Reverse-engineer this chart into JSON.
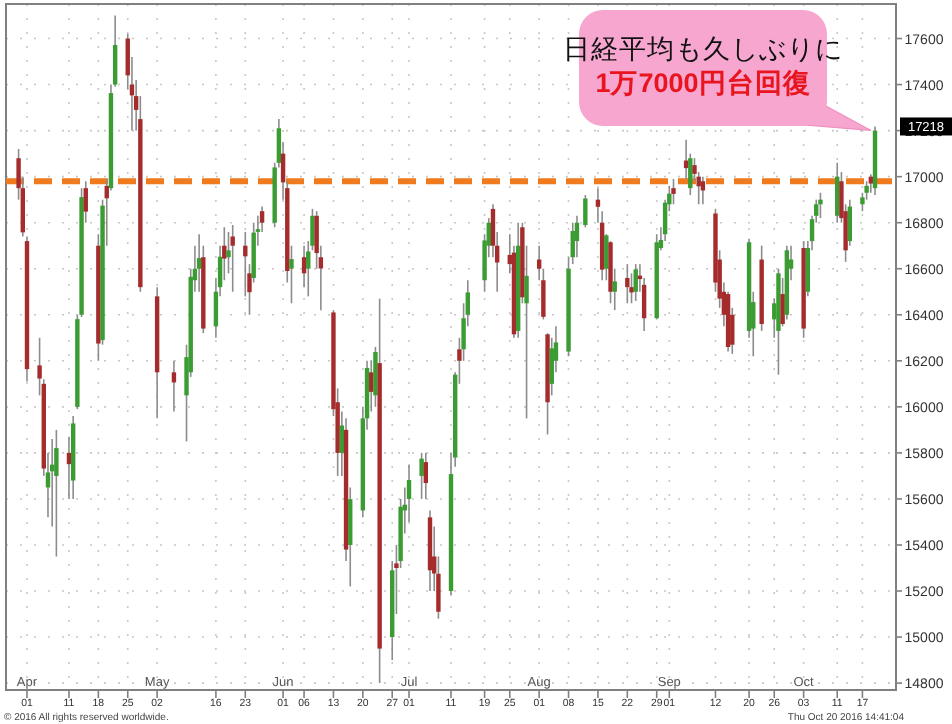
{
  "chart_data": {
    "type": "candlestick",
    "x": [
      "2016-03-30",
      "2016-03-31",
      "2016-04-01",
      "2016-04-04",
      "2016-04-05",
      "2016-04-06",
      "2016-04-07",
      "2016-04-08",
      "2016-04-11",
      "2016-04-12",
      "2016-04-13",
      "2016-04-14",
      "2016-04-15",
      "2016-04-18",
      "2016-04-19",
      "2016-04-20",
      "2016-04-21",
      "2016-04-22",
      "2016-04-25",
      "2016-04-26",
      "2016-04-27",
      "2016-04-28",
      "2016-05-02",
      "2016-05-06",
      "2016-05-09",
      "2016-05-10",
      "2016-05-11",
      "2016-05-12",
      "2016-05-13",
      "2016-05-16",
      "2016-05-17",
      "2016-05-18",
      "2016-05-19",
      "2016-05-20",
      "2016-05-23",
      "2016-05-24",
      "2016-05-25",
      "2016-05-26",
      "2016-05-27",
      "2016-05-30",
      "2016-05-31",
      "2016-06-01",
      "2016-06-02",
      "2016-06-03",
      "2016-06-06",
      "2016-06-07",
      "2016-06-08",
      "2016-06-09",
      "2016-06-10",
      "2016-06-13",
      "2016-06-14",
      "2016-06-15",
      "2016-06-16",
      "2016-06-17",
      "2016-06-20",
      "2016-06-21",
      "2016-06-22",
      "2016-06-23",
      "2016-06-24",
      "2016-06-27",
      "2016-06-28",
      "2016-06-29",
      "2016-06-30",
      "2016-07-01",
      "2016-07-04",
      "2016-07-05",
      "2016-07-06",
      "2016-07-07",
      "2016-07-08",
      "2016-07-11",
      "2016-07-12",
      "2016-07-13",
      "2016-07-14",
      "2016-07-15",
      "2016-07-19",
      "2016-07-20",
      "2016-07-21",
      "2016-07-22",
      "2016-07-25",
      "2016-07-26",
      "2016-07-27",
      "2016-07-28",
      "2016-07-29",
      "2016-08-01",
      "2016-08-02",
      "2016-08-03",
      "2016-08-04",
      "2016-08-05",
      "2016-08-08",
      "2016-08-09",
      "2016-08-10",
      "2016-08-12",
      "2016-08-15",
      "2016-08-16",
      "2016-08-17",
      "2016-08-18",
      "2016-08-19",
      "2016-08-22",
      "2016-08-23",
      "2016-08-24",
      "2016-08-25",
      "2016-08-26",
      "2016-08-29",
      "2016-08-30",
      "2016-08-31",
      "2016-09-01",
      "2016-09-02",
      "2016-09-05",
      "2016-09-06",
      "2016-09-07",
      "2016-09-08",
      "2016-09-09",
      "2016-09-12",
      "2016-09-13",
      "2016-09-14",
      "2016-09-15",
      "2016-09-16",
      "2016-09-20",
      "2016-09-21",
      "2016-09-23",
      "2016-09-26",
      "2016-09-27",
      "2016-09-28",
      "2016-09-29",
      "2016-09-30",
      "2016-10-03",
      "2016-10-04",
      "2016-10-05",
      "2016-10-06",
      "2016-10-07",
      "2016-10-11",
      "2016-10-12",
      "2016-10-13",
      "2016-10-14",
      "2016-10-17",
      "2016-10-18",
      "2016-10-19",
      "2016-10-20"
    ],
    "ohlc": [
      [
        17080,
        17120,
        16900,
        16950
      ],
      [
        16950,
        17000,
        16740,
        16758
      ],
      [
        16720,
        16740,
        16110,
        16164
      ],
      [
        16180,
        16300,
        16050,
        16123
      ],
      [
        16100,
        16120,
        15700,
        15732
      ],
      [
        15650,
        15800,
        15520,
        15715
      ],
      [
        15720,
        15860,
        15480,
        15749
      ],
      [
        15700,
        15900,
        15350,
        15821
      ],
      [
        15800,
        15870,
        15600,
        15751
      ],
      [
        15680,
        15960,
        15600,
        15928
      ],
      [
        16000,
        16400,
        15990,
        16381
      ],
      [
        16400,
        16950,
        16390,
        16911
      ],
      [
        16950,
        16980,
        16800,
        16848
      ],
      [
        16700,
        16750,
        16200,
        16275
      ],
      [
        16290,
        16900,
        16270,
        16874
      ],
      [
        16960,
        16990,
        16700,
        16906
      ],
      [
        16950,
        17400,
        16940,
        17363
      ],
      [
        17400,
        17700,
        17390,
        17572
      ],
      [
        17600,
        17620,
        17380,
        17440
      ],
      [
        17400,
        17520,
        17200,
        17353
      ],
      [
        17350,
        17420,
        17200,
        17290
      ],
      [
        17250,
        17350,
        16500,
        16520
      ],
      [
        16480,
        16520,
        15950,
        16150
      ],
      [
        16150,
        16200,
        15980,
        16106
      ],
      [
        16050,
        16270,
        15850,
        16216
      ],
      [
        16150,
        16600,
        16130,
        16565
      ],
      [
        16550,
        16700,
        16500,
        16600
      ],
      [
        16600,
        16750,
        16500,
        16646
      ],
      [
        16650,
        16700,
        16320,
        16340
      ],
      [
        16350,
        16560,
        16300,
        16500
      ],
      [
        16520,
        16700,
        16480,
        16652
      ],
      [
        16700,
        16780,
        16550,
        16644
      ],
      [
        16650,
        16760,
        16580,
        16680
      ],
      [
        16740,
        16790,
        16500,
        16700
      ],
      [
        16700,
        16760,
        16480,
        16654
      ],
      [
        16580,
        16620,
        16400,
        16498
      ],
      [
        16560,
        16800,
        16540,
        16757
      ],
      [
        16760,
        16830,
        16700,
        16772
      ],
      [
        16850,
        16870,
        16760,
        16800
      ],
      [
        16800,
        17060,
        16780,
        17040
      ],
      [
        17060,
        17250,
        17040,
        17210
      ],
      [
        17100,
        17150,
        16900,
        16975
      ],
      [
        16950,
        16980,
        16540,
        16590
      ],
      [
        16600,
        16700,
        16450,
        16642
      ],
      [
        16650,
        16700,
        16520,
        16580
      ],
      [
        16600,
        16720,
        16480,
        16675
      ],
      [
        16700,
        16860,
        16680,
        16830
      ],
      [
        16830,
        16850,
        16600,
        16668
      ],
      [
        16650,
        16700,
        16420,
        16601
      ],
      [
        16410,
        16420,
        15960,
        15990
      ],
      [
        16020,
        16080,
        15700,
        15800
      ],
      [
        15800,
        15980,
        15700,
        15919
      ],
      [
        15900,
        15950,
        15330,
        15380
      ],
      [
        15400,
        15650,
        15220,
        15599
      ],
      [
        15550,
        16000,
        15520,
        15950
      ],
      [
        15950,
        16200,
        15900,
        16169
      ],
      [
        16150,
        16200,
        15980,
        16065
      ],
      [
        16050,
        16260,
        16000,
        16238
      ],
      [
        16190,
        16470,
        14800,
        14950
      ],
      [
        15000,
        15330,
        14900,
        15290
      ],
      [
        15320,
        15400,
        15100,
        15300
      ],
      [
        15330,
        15600,
        15300,
        15566
      ],
      [
        15550,
        15650,
        15450,
        15575
      ],
      [
        15600,
        15750,
        15500,
        15682
      ],
      [
        15700,
        15800,
        15600,
        15775
      ],
      [
        15760,
        15800,
        15600,
        15669
      ],
      [
        15520,
        15550,
        15200,
        15290
      ],
      [
        15350,
        15480,
        15200,
        15276
      ],
      [
        15275,
        15350,
        15080,
        15110
      ],
      [
        15200,
        15800,
        15180,
        15708
      ],
      [
        15780,
        16150,
        15740,
        16140
      ],
      [
        16250,
        16300,
        16100,
        16200
      ],
      [
        16250,
        16450,
        16200,
        16385
      ],
      [
        16400,
        16550,
        16350,
        16497
      ],
      [
        16550,
        16750,
        16500,
        16723
      ],
      [
        16700,
        16820,
        16650,
        16800
      ],
      [
        16860,
        16880,
        16650,
        16700
      ],
      [
        16700,
        16760,
        16500,
        16627
      ],
      [
        16660,
        16750,
        16580,
        16620
      ],
      [
        16670,
        16700,
        16300,
        16315
      ],
      [
        16330,
        16800,
        16300,
        16700
      ],
      [
        16780,
        16800,
        16450,
        16476
      ],
      [
        16450,
        16700,
        15950,
        16569
      ],
      [
        16640,
        16700,
        16550,
        16600
      ],
      [
        16550,
        16600,
        16380,
        16391
      ],
      [
        16315,
        16320,
        15880,
        16020
      ],
      [
        16100,
        16300,
        16050,
        16254
      ],
      [
        16200,
        16350,
        16150,
        16280
      ],
      [
        16240,
        16650,
        16220,
        16600
      ],
      [
        16650,
        16800,
        16620,
        16764
      ],
      [
        16720,
        16830,
        16650,
        16800
      ],
      [
        16790,
        16920,
        16780,
        16905
      ],
      [
        16900,
        16950,
        16800,
        16869
      ],
      [
        16800,
        16850,
        16550,
        16596
      ],
      [
        16600,
        16750,
        16550,
        16745
      ],
      [
        16715,
        16720,
        16450,
        16500
      ],
      [
        16500,
        16600,
        16420,
        16545
      ],
      [
        16560,
        16620,
        16450,
        16520
      ],
      [
        16520,
        16580,
        16450,
        16497
      ],
      [
        16500,
        16620,
        16460,
        16597
      ],
      [
        16570,
        16620,
        16500,
        16555
      ],
      [
        16530,
        16560,
        16330,
        16385
      ],
      [
        16385,
        16750,
        16380,
        16715
      ],
      [
        16690,
        16780,
        16680,
        16725
      ],
      [
        16750,
        16900,
        16720,
        16887
      ],
      [
        16880,
        16960,
        16850,
        16926
      ],
      [
        16950,
        16990,
        16880,
        16925
      ],
      [
        17070,
        17160,
        16990,
        17037
      ],
      [
        16950,
        17100,
        16920,
        17080
      ],
      [
        17050,
        17080,
        16980,
        17012
      ],
      [
        17000,
        17020,
        16880,
        16958
      ],
      [
        16980,
        17000,
        16880,
        16940
      ],
      [
        16840,
        16860,
        16500,
        16540
      ],
      [
        16640,
        16680,
        16430,
        16470
      ],
      [
        16500,
        16540,
        16350,
        16400
      ],
      [
        16490,
        16500,
        16240,
        16260
      ],
      [
        16400,
        16430,
        16230,
        16270
      ],
      [
        16330,
        16730,
        16300,
        16715
      ],
      [
        16340,
        16500,
        16220,
        16455
      ],
      [
        16640,
        16700,
        16330,
        16360
      ],
      [
        16380,
        16470,
        16300,
        16450
      ],
      [
        16330,
        16600,
        16140,
        16580
      ],
      [
        16490,
        16560,
        16350,
        16360
      ],
      [
        16400,
        16700,
        16380,
        16680
      ],
      [
        16600,
        16700,
        16550,
        16640
      ],
      [
        16690,
        16720,
        16300,
        16340
      ],
      [
        16500,
        16720,
        16480,
        16690
      ],
      [
        16720,
        16830,
        16680,
        16815
      ],
      [
        16830,
        16900,
        16800,
        16880
      ],
      [
        16880,
        16930,
        16820,
        16900
      ],
      [
        16830,
        17060,
        16800,
        17000
      ],
      [
        16980,
        17020,
        16800,
        16820
      ],
      [
        16850,
        16880,
        16630,
        16680
      ],
      [
        16720,
        16900,
        16700,
        16870
      ],
      [
        16880,
        16930,
        16850,
        16910
      ],
      [
        16930,
        16980,
        16900,
        16960
      ],
      [
        17000,
        17010,
        16930,
        16970
      ],
      [
        16950,
        17218,
        16920,
        17200
      ]
    ],
    "colors": [
      "#a52c2c",
      "#a52c2c",
      "#a52c2c",
      "#a52c2c",
      "#a52c2c",
      "#3a9c32",
      "#3a9c32",
      "#3a9c32",
      "#a52c2c",
      "#3a9c32",
      "#3a9c32",
      "#3a9c32",
      "#a52c2c",
      "#a52c2c",
      "#3a9c32",
      "#a52c2c",
      "#3a9c32",
      "#3a9c32",
      "#a52c2c",
      "#a52c2c",
      "#a52c2c",
      "#a52c2c",
      "#a52c2c",
      "#a52c2c",
      "#3a9c32",
      "#3a9c32",
      "#3a9c32",
      "#3a9c32",
      "#a52c2c",
      "#3a9c32",
      "#3a9c32",
      "#a52c2c",
      "#3a9c32",
      "#a52c2c",
      "#a52c2c",
      "#a52c2c",
      "#3a9c32",
      "#3a9c32",
      "#a52c2c",
      "#3a9c32",
      "#3a9c32",
      "#a52c2c",
      "#a52c2c",
      "#3a9c32",
      "#a52c2c",
      "#3a9c32",
      "#3a9c32",
      "#a52c2c",
      "#a52c2c",
      "#a52c2c",
      "#a52c2c",
      "#3a9c32",
      "#a52c2c",
      "#3a9c32",
      "#3a9c32",
      "#3a9c32",
      "#a52c2c",
      "#3a9c32",
      "#a52c2c",
      "#3a9c32",
      "#a52c2c",
      "#3a9c32",
      "#3a9c32",
      "#3a9c32",
      "#3a9c32",
      "#a52c2c",
      "#a52c2c",
      "#a52c2c",
      "#a52c2c",
      "#3a9c32",
      "#3a9c32",
      "#a52c2c",
      "#3a9c32",
      "#3a9c32",
      "#3a9c32",
      "#3a9c32",
      "#a52c2c",
      "#a52c2c",
      "#a52c2c",
      "#a52c2c",
      "#3a9c32",
      "#a52c2c",
      "#3a9c32",
      "#a52c2c",
      "#a52c2c",
      "#a52c2c",
      "#3a9c32",
      "#3a9c32",
      "#3a9c32",
      "#3a9c32",
      "#3a9c32",
      "#3a9c32",
      "#a52c2c",
      "#a52c2c",
      "#3a9c32",
      "#a52c2c",
      "#3a9c32",
      "#a52c2c",
      "#a52c2c",
      "#3a9c32",
      "#a52c2c",
      "#a52c2c",
      "#3a9c32",
      "#3a9c32",
      "#3a9c32",
      "#3a9c32",
      "#a52c2c",
      "#a52c2c",
      "#3a9c32",
      "#a52c2c",
      "#a52c2c",
      "#a52c2c",
      "#a52c2c",
      "#a52c2c",
      "#a52c2c",
      "#a52c2c",
      "#a52c2c",
      "#3a9c32",
      "#3a9c32",
      "#a52c2c",
      "#3a9c32",
      "#3a9c32",
      "#a52c2c",
      "#3a9c32",
      "#3a9c32",
      "#a52c2c",
      "#3a9c32",
      "#3a9c32",
      "#3a9c32",
      "#3a9c32",
      "#3a9c32",
      "#a52c2c",
      "#a52c2c",
      "#3a9c32",
      "#3a9c32",
      "#3a9c32",
      "#a52c2c",
      "#3a9c32"
    ],
    "xlim": [
      "2016-03-27",
      "2016-10-25"
    ],
    "xticks": [
      {
        "value": "2016-04-01",
        "label": "01"
      },
      {
        "value": "2016-04-11",
        "label": "11"
      },
      {
        "value": "2016-04-18",
        "label": "18"
      },
      {
        "value": "2016-04-25",
        "label": "25"
      },
      {
        "value": "2016-05-02",
        "label": "02"
      },
      {
        "value": "2016-05-16",
        "label": "16"
      },
      {
        "value": "2016-05-23",
        "label": "23"
      },
      {
        "value": "2016-06-01",
        "label": "01"
      },
      {
        "value": "2016-06-06",
        "label": "06"
      },
      {
        "value": "2016-06-13",
        "label": "13"
      },
      {
        "value": "2016-06-20",
        "label": "20"
      },
      {
        "value": "2016-06-27",
        "label": "27"
      },
      {
        "value": "2016-07-01",
        "label": "01"
      },
      {
        "value": "2016-07-11",
        "label": "11"
      },
      {
        "value": "2016-07-19",
        "label": "19"
      },
      {
        "value": "2016-07-25",
        "label": "25"
      },
      {
        "value": "2016-08-01",
        "label": "01"
      },
      {
        "value": "2016-08-08",
        "label": "08"
      },
      {
        "value": "2016-08-15",
        "label": "15"
      },
      {
        "value": "2016-08-22",
        "label": "22"
      },
      {
        "value": "2016-08-29",
        "label": "29"
      },
      {
        "value": "2016-09-01",
        "label": "01"
      },
      {
        "value": "2016-09-12",
        "label": "12"
      },
      {
        "value": "2016-09-20",
        "label": "20"
      },
      {
        "value": "2016-09-26",
        "label": "26"
      },
      {
        "value": "2016-10-03",
        "label": "03"
      },
      {
        "value": "2016-10-11",
        "label": "11"
      },
      {
        "value": "2016-10-17",
        "label": "17"
      }
    ],
    "x2lim": [
      "2016-03-27",
      "2016-10-25"
    ],
    "x2ticks": [
      {
        "value": "2016-04-01",
        "label": "Apr"
      },
      {
        "value": "2016-05-02",
        "label": "May"
      },
      {
        "value": "2016-06-01",
        "label": "Jun"
      },
      {
        "value": "2016-07-01",
        "label": "Jul"
      },
      {
        "value": "2016-08-01",
        "label": "Aug"
      },
      {
        "value": "2016-09-01",
        "label": "Sep"
      },
      {
        "value": "2016-10-03",
        "label": "Oct"
      }
    ],
    "ylim": [
      14770,
      17750
    ],
    "yticks": [
      14800,
      15000,
      15200,
      15400,
      15600,
      15800,
      16000,
      16200,
      16400,
      16600,
      16800,
      17000,
      17200,
      17400,
      17600
    ],
    "grid": true,
    "ref_lines": [
      {
        "axis": "y",
        "value": 16980,
        "color": "#f07a1e",
        "line_style": "dashed"
      }
    ],
    "annotations": [
      "日経平均も久しぶりに\n**1万7000円台回復**",
      {
        "text": "17218",
        "y": 17218
      },
      "© 2016 All rights reserved worldwide.",
      "Thu Oct 20 2016 14:41:04"
    ]
  }
}
